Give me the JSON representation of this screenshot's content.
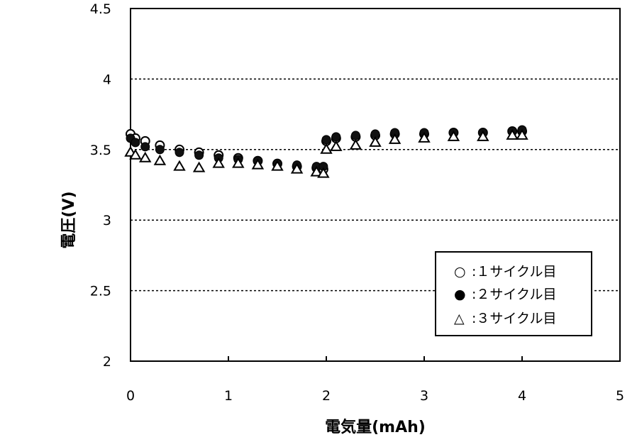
{
  "chart_data": {
    "type": "scatter",
    "xlabel": "電気量(mAh)",
    "ylabel": "電圧(V)",
    "xlim": [
      0,
      5
    ],
    "ylim": [
      2,
      4.5
    ],
    "x_ticks": [
      "0",
      "1",
      "2",
      "3",
      "4",
      "5"
    ],
    "y_ticks": [
      "2",
      "2.5",
      "3",
      "3.5",
      "4",
      "4.5"
    ],
    "grid": "horizontal dashed",
    "legend_position": "lower-right",
    "series": [
      {
        "name": "1サイクル目",
        "marker": "open-circle",
        "x": [
          0.0,
          0.05,
          0.15,
          0.3,
          0.5,
          0.7,
          0.9,
          1.1,
          1.3,
          1.5,
          1.7,
          1.9,
          1.97,
          2.0,
          2.1,
          2.3,
          2.5,
          2.7,
          3.0,
          3.3,
          3.6,
          3.9,
          4.0
        ],
        "y": [
          3.61,
          3.58,
          3.56,
          3.53,
          3.5,
          3.48,
          3.46,
          3.44,
          3.42,
          3.4,
          3.38,
          3.37,
          3.36,
          3.56,
          3.58,
          3.59,
          3.6,
          3.61,
          3.61,
          3.62,
          3.62,
          3.63,
          3.63
        ]
      },
      {
        "name": "2サイクル目",
        "marker": "filled-circle",
        "x": [
          0.0,
          0.05,
          0.15,
          0.3,
          0.5,
          0.7,
          0.9,
          1.1,
          1.3,
          1.5,
          1.7,
          1.9,
          1.97,
          2.0,
          2.1,
          2.3,
          2.5,
          2.7,
          3.0,
          3.3,
          3.6,
          3.9,
          4.0
        ],
        "y": [
          3.58,
          3.55,
          3.52,
          3.5,
          3.48,
          3.46,
          3.44,
          3.43,
          3.42,
          3.4,
          3.39,
          3.38,
          3.38,
          3.57,
          3.59,
          3.6,
          3.61,
          3.62,
          3.62,
          3.62,
          3.62,
          3.63,
          3.64
        ]
      },
      {
        "name": "3サイクル目",
        "marker": "open-triangle",
        "x": [
          0.0,
          0.05,
          0.15,
          0.3,
          0.5,
          0.7,
          0.9,
          1.1,
          1.3,
          1.5,
          1.7,
          1.9,
          1.97,
          2.0,
          2.1,
          2.3,
          2.5,
          2.7,
          3.0,
          3.3,
          3.6,
          3.9,
          4.0
        ],
        "y": [
          3.48,
          3.46,
          3.44,
          3.42,
          3.38,
          3.37,
          3.4,
          3.4,
          3.39,
          3.38,
          3.36,
          3.34,
          3.33,
          3.5,
          3.52,
          3.53,
          3.55,
          3.57,
          3.58,
          3.59,
          3.59,
          3.6,
          3.6
        ]
      }
    ],
    "legend": {
      "entries": [
        {
          "symbol": "○",
          "label": ":１サイクル目"
        },
        {
          "symbol": "●",
          "label": ":２サイクル目"
        },
        {
          "symbol": "△",
          "label": ":３サイクル目"
        }
      ]
    }
  }
}
